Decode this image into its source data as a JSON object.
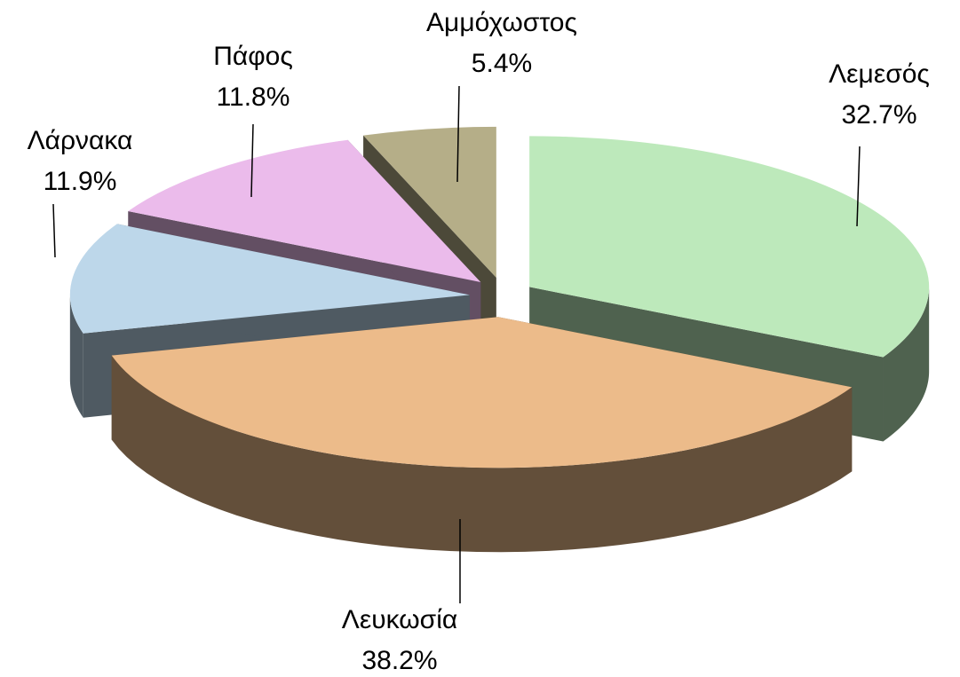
{
  "chart_data": {
    "type": "pie",
    "categories": [
      "Λεμεσός",
      "Λευκωσία",
      "Λάρνακα",
      "Πάφος",
      "Αμμόχωστος"
    ],
    "values": [
      32.7,
      38.2,
      11.9,
      11.8,
      5.4
    ],
    "value_labels": [
      "32.7%",
      "38.2%",
      "11.9%",
      "11.8%",
      "5.4%"
    ],
    "colors": [
      "#bde9bb",
      "#ecbb8a",
      "#bdd7ea",
      "#ebbbeb",
      "#b5ae88"
    ]
  }
}
